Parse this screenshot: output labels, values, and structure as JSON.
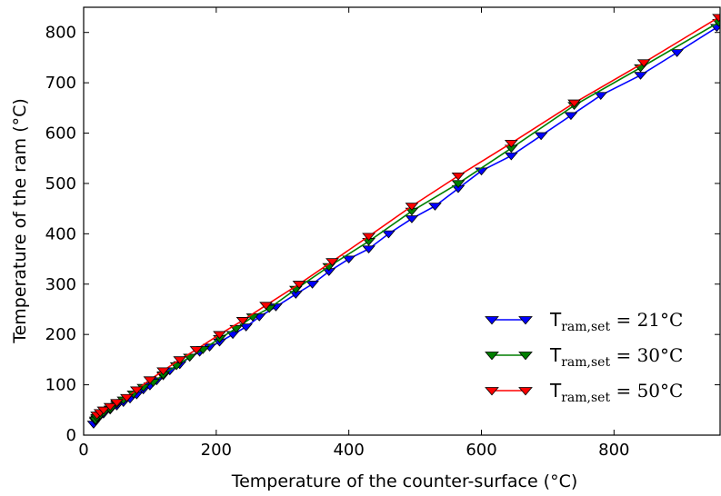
{
  "chart_data": {
    "type": "line",
    "title": "",
    "xlabel": "Temperature of the counter-surface (°C)",
    "ylabel": "Temperature of the ram (°C)",
    "xlim": [
      0,
      960
    ],
    "ylim": [
      0,
      850
    ],
    "xticks": [
      0,
      200,
      400,
      600,
      800
    ],
    "yticks": [
      0,
      100,
      200,
      300,
      400,
      500,
      600,
      700,
      800
    ],
    "xtick_labels": [
      "0",
      "200",
      "400",
      "600",
      "800"
    ],
    "ytick_labels": [
      "0",
      "100",
      "200",
      "300",
      "400",
      "500",
      "600",
      "700",
      "800"
    ],
    "grid": false,
    "legend_position": "lower-right",
    "marker": "triangle-down",
    "series": [
      {
        "label_main": "T",
        "label_sub": "ram,set",
        "label_rest": " = 21°C",
        "color": "#0000ff",
        "x": [
          15,
          18,
          20,
          25,
          30,
          40,
          50,
          60,
          70,
          80,
          90,
          100,
          110,
          120,
          130,
          145,
          160,
          175,
          190,
          205,
          225,
          245,
          265,
          290,
          320,
          345,
          370,
          400,
          430,
          460,
          495,
          530,
          565,
          600,
          645,
          690,
          735,
          780,
          840,
          895,
          955
        ],
        "y": [
          22,
          28,
          32,
          38,
          42,
          50,
          58,
          65,
          72,
          80,
          90,
          98,
          108,
          118,
          128,
          140,
          155,
          165,
          175,
          185,
          200,
          215,
          235,
          255,
          280,
          300,
          325,
          350,
          370,
          400,
          430,
          455,
          490,
          525,
          555,
          595,
          635,
          675,
          715,
          760,
          810
        ]
      },
      {
        "label_main": "T",
        "label_sub": "ram,set",
        "label_rest": " = 30°C",
        "color": "#007f00",
        "x": [
          18,
          20,
          25,
          30,
          40,
          50,
          60,
          75,
          90,
          105,
          120,
          140,
          160,
          180,
          205,
          230,
          255,
          280,
          320,
          370,
          430,
          495,
          565,
          645,
          740,
          840,
          958
        ],
        "y": [
          30,
          35,
          40,
          45,
          52,
          62,
          70,
          82,
          95,
          105,
          120,
          138,
          155,
          170,
          192,
          212,
          235,
          252,
          290,
          335,
          385,
          445,
          500,
          570,
          655,
          730,
          820
        ]
      },
      {
        "label_main": "T",
        "label_sub": "ram,set",
        "label_rest": " = 50°C",
        "color": "#ff0000",
        "x": [
          20,
          25,
          30,
          40,
          50,
          65,
          80,
          100,
          120,
          145,
          170,
          205,
          240,
          275,
          325,
          375,
          430,
          495,
          565,
          645,
          740,
          845,
          958
        ],
        "y": [
          40,
          45,
          50,
          57,
          65,
          75,
          90,
          110,
          128,
          150,
          170,
          200,
          228,
          258,
          300,
          345,
          395,
          455,
          515,
          580,
          660,
          740,
          830
        ]
      }
    ]
  }
}
